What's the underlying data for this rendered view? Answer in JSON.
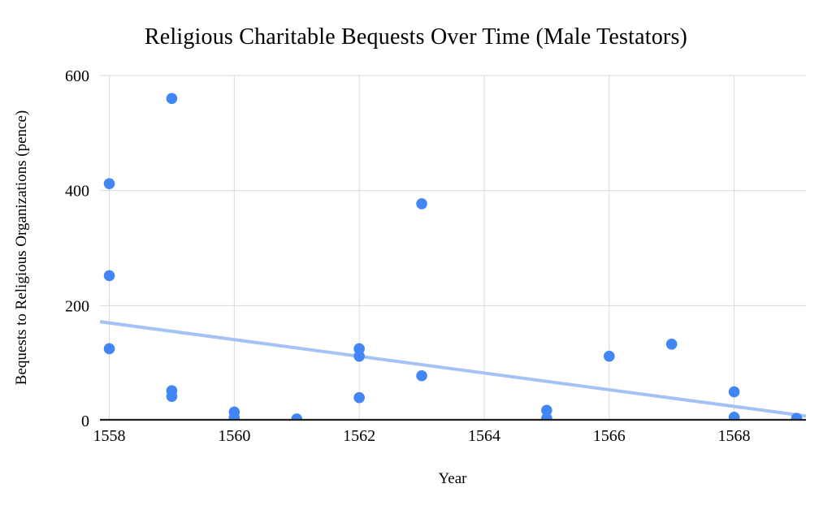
{
  "chart_data": {
    "type": "scatter",
    "title": "Religious Charitable Bequests Over Time (Male Testators)",
    "xlabel": "Year",
    "ylabel": "Bequests to Religious Organizations (pence)",
    "xlim": [
      1557.85,
      1569.15
    ],
    "ylim": [
      0,
      600
    ],
    "x_ticks": [
      1558,
      1560,
      1562,
      1564,
      1566,
      1568
    ],
    "y_ticks": [
      0,
      200,
      400,
      600
    ],
    "grid": true,
    "legend": false,
    "point_color": "#4285f4",
    "trendline_color": "#a4c2f4",
    "grid_color": "#d9d9d9",
    "axis_color": "#212121",
    "points": [
      {
        "x": 1558,
        "y": 412
      },
      {
        "x": 1558,
        "y": 252
      },
      {
        "x": 1558,
        "y": 125
      },
      {
        "x": 1559,
        "y": 560
      },
      {
        "x": 1559,
        "y": 52
      },
      {
        "x": 1559,
        "y": 42
      },
      {
        "x": 1560,
        "y": 15
      },
      {
        "x": 1560,
        "y": 5
      },
      {
        "x": 1561,
        "y": 3
      },
      {
        "x": 1562,
        "y": 125
      },
      {
        "x": 1562,
        "y": 112
      },
      {
        "x": 1562,
        "y": 40
      },
      {
        "x": 1563,
        "y": 377
      },
      {
        "x": 1563,
        "y": 78
      },
      {
        "x": 1565,
        "y": 18
      },
      {
        "x": 1565,
        "y": 4
      },
      {
        "x": 1566,
        "y": 112
      },
      {
        "x": 1567,
        "y": 133
      },
      {
        "x": 1568,
        "y": 50
      },
      {
        "x": 1568,
        "y": 6
      },
      {
        "x": 1569,
        "y": 4
      }
    ],
    "trendline": {
      "x1": 1557.85,
      "y1": 172,
      "x2": 1569.15,
      "y2": 8
    }
  }
}
